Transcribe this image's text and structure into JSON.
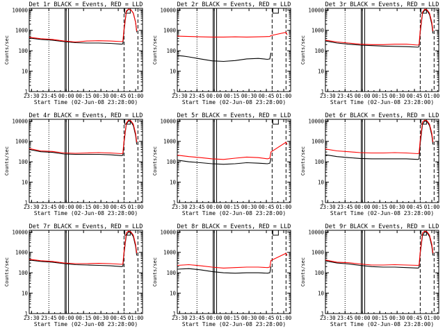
{
  "figure": {
    "xlabel": "Start Time (02-Jun-08 23:28:00)",
    "ylabel": "Counts/sec",
    "xticks": [
      "23:30",
      "23:45",
      "00:00",
      "00:15",
      "00:30",
      "00:45",
      "01:00"
    ],
    "yticks": [
      "1",
      "10",
      "100",
      "1000",
      "10000"
    ],
    "colors": {
      "events": "#000000",
      "lld": "#ff0000",
      "axes": "#000000",
      "background": "#ffffff"
    }
  },
  "chart_data": [
    {
      "type": "line",
      "title": "Det 1r BLACK = Events, RED = LLD",
      "xlabel": "Start Time (02-Jun-08 23:28:00)",
      "ylabel": "Counts/sec",
      "xlim_minutes": [
        0,
        98
      ],
      "ylim": [
        1,
        12000
      ],
      "yscale": "log",
      "dotted_line_min": 17,
      "solid_lines_min": [
        31,
        32,
        34
      ],
      "dashed_lines_min": [
        82,
        94
      ],
      "box_min": 85,
      "series": [
        {
          "name": "Events",
          "color": "#000000",
          "x": [
            0,
            10,
            20,
            30,
            40,
            50,
            60,
            70,
            80,
            81,
            82,
            84,
            86,
            88,
            90,
            92,
            93
          ],
          "y": [
            420,
            360,
            330,
            280,
            250,
            240,
            240,
            230,
            210,
            220,
            1000,
            8000,
            11000,
            10000,
            7000,
            2500,
            800
          ]
        },
        {
          "name": "LLD",
          "color": "#ff0000",
          "x": [
            0,
            10,
            20,
            30,
            40,
            50,
            60,
            70,
            80,
            81,
            82,
            84,
            86,
            88,
            90,
            92,
            93
          ],
          "y": [
            460,
            390,
            360,
            300,
            270,
            300,
            310,
            300,
            280,
            290,
            1200,
            9000,
            11000,
            10000,
            7000,
            2500,
            900
          ]
        }
      ]
    },
    {
      "type": "line",
      "title": "Det 2r BLACK = Events, RED = LLD",
      "xlabel": "Start Time (02-Jun-08 23:28:00)",
      "ylabel": "Counts/sec",
      "xlim_minutes": [
        0,
        98
      ],
      "ylim": [
        1,
        12000
      ],
      "yscale": "log",
      "dotted_line_min": 17,
      "solid_lines_min": [
        31,
        32,
        34
      ],
      "dashed_lines_min": [
        82,
        94
      ],
      "box_min": 85,
      "series": [
        {
          "name": "Events",
          "color": "#000000",
          "x": [
            0,
            5,
            10,
            20,
            30,
            40,
            50,
            60,
            70,
            78,
            80,
            81
          ],
          "y": [
            58,
            55,
            50,
            40,
            32,
            30,
            33,
            40,
            42,
            38,
            40,
            80
          ]
        },
        {
          "name": "LLD",
          "color": "#ff0000",
          "x": [
            0,
            10,
            20,
            30,
            40,
            50,
            60,
            70,
            80,
            81,
            94,
            95
          ],
          "y": [
            520,
            500,
            480,
            470,
            470,
            480,
            470,
            480,
            500,
            560,
            800,
            600
          ]
        }
      ]
    },
    {
      "type": "line",
      "title": "Det 3r BLACK = Events, RED = LLD",
      "xlabel": "Start Time (02-Jun-08 23:28:00)",
      "ylabel": "Counts/sec",
      "xlim_minutes": [
        0,
        98
      ],
      "ylim": [
        1,
        12000
      ],
      "yscale": "log",
      "dotted_line_min": 17,
      "solid_lines_min": [
        31,
        32,
        34
      ],
      "dashed_lines_min": [
        82,
        94
      ],
      "box_min": 85,
      "series": [
        {
          "name": "Events",
          "color": "#000000",
          "x": [
            0,
            10,
            20,
            30,
            40,
            50,
            60,
            70,
            80,
            81,
            82,
            84,
            86,
            88,
            90,
            92,
            93
          ],
          "y": [
            300,
            240,
            210,
            190,
            180,
            170,
            165,
            160,
            150,
            160,
            800,
            7000,
            10000,
            9000,
            6000,
            2000,
            700
          ]
        },
        {
          "name": "LLD",
          "color": "#ff0000",
          "x": [
            0,
            10,
            20,
            30,
            40,
            50,
            60,
            70,
            80,
            81,
            82,
            84,
            86,
            88,
            90,
            92,
            93
          ],
          "y": [
            330,
            270,
            240,
            210,
            200,
            200,
            210,
            210,
            190,
            200,
            1000,
            8000,
            11000,
            10000,
            7000,
            2500,
            900
          ]
        }
      ]
    },
    {
      "type": "line",
      "title": "Det 4r BLACK = Events, RED = LLD",
      "xlabel": "Start Time (02-Jun-08 23:28:00)",
      "ylabel": "Counts/sec",
      "xlim_minutes": [
        0,
        98
      ],
      "ylim": [
        1,
        12000
      ],
      "yscale": "log",
      "dotted_line_min": 17,
      "solid_lines_min": [
        31,
        32,
        34
      ],
      "dashed_lines_min": [
        82,
        94
      ],
      "box_min": 85,
      "series": [
        {
          "name": "Events",
          "color": "#000000",
          "x": [
            0,
            10,
            20,
            30,
            40,
            50,
            60,
            70,
            80,
            81,
            82,
            84,
            86,
            88,
            90,
            92,
            93
          ],
          "y": [
            400,
            310,
            290,
            240,
            230,
            230,
            230,
            220,
            200,
            210,
            900,
            7000,
            10000,
            9000,
            6000,
            2000,
            700
          ]
        },
        {
          "name": "LLD",
          "color": "#ff0000",
          "x": [
            0,
            10,
            20,
            30,
            40,
            50,
            60,
            70,
            80,
            81,
            82,
            84,
            86,
            88,
            90,
            92,
            93
          ],
          "y": [
            440,
            340,
            320,
            270,
            260,
            270,
            280,
            270,
            250,
            260,
            1100,
            8000,
            11000,
            10000,
            7000,
            2500,
            900
          ]
        }
      ]
    },
    {
      "type": "line",
      "title": "Det 5r BLACK = Events, RED = LLD",
      "xlabel": "Start Time (02-Jun-08 23:28:00)",
      "ylabel": "Counts/sec",
      "xlim_minutes": [
        0,
        98
      ],
      "ylim": [
        1,
        12000
      ],
      "yscale": "log",
      "dotted_line_min": 17,
      "solid_lines_min": [
        31,
        32,
        34
      ],
      "dashed_lines_min": [
        82,
        94
      ],
      "box_min": 85,
      "series": [
        {
          "name": "Events",
          "color": "#000000",
          "x": [
            0,
            10,
            20,
            30,
            40,
            50,
            60,
            70,
            78,
            80,
            81
          ],
          "y": [
            120,
            100,
            90,
            80,
            75,
            80,
            90,
            85,
            80,
            85,
            150
          ]
        },
        {
          "name": "LLD",
          "color": "#ff0000",
          "x": [
            0,
            10,
            20,
            30,
            40,
            50,
            60,
            70,
            78,
            80,
            81,
            94,
            95
          ],
          "y": [
            210,
            180,
            160,
            140,
            130,
            150,
            170,
            160,
            140,
            150,
            300,
            900,
            700
          ]
        }
      ]
    },
    {
      "type": "line",
      "title": "Det 6r BLACK = Events, RED = LLD",
      "xlabel": "Start Time (02-Jun-08 23:28:00)",
      "ylabel": "Counts/sec",
      "xlim_minutes": [
        0,
        98
      ],
      "ylim": [
        1,
        12000
      ],
      "yscale": "log",
      "dotted_line_min": 17,
      "solid_lines_min": [
        31,
        32,
        34
      ],
      "dashed_lines_min": [
        82,
        94
      ],
      "box_min": 85,
      "series": [
        {
          "name": "Events",
          "color": "#000000",
          "x": [
            0,
            10,
            20,
            30,
            40,
            50,
            60,
            70,
            80,
            81,
            82,
            84,
            86,
            88,
            90,
            92,
            93
          ],
          "y": [
            220,
            180,
            160,
            145,
            140,
            140,
            140,
            140,
            130,
            140,
            800,
            7000,
            10000,
            9000,
            6000,
            2000,
            700
          ]
        },
        {
          "name": "LLD",
          "color": "#ff0000",
          "x": [
            0,
            10,
            20,
            30,
            40,
            50,
            60,
            70,
            80,
            81,
            82,
            84,
            86,
            88,
            90,
            92,
            93
          ],
          "y": [
            420,
            340,
            310,
            280,
            270,
            270,
            280,
            270,
            250,
            260,
            1200,
            9000,
            11000,
            10000,
            7000,
            2500,
            900
          ]
        }
      ]
    },
    {
      "type": "line",
      "title": "Det 7r BLACK = Events, RED = LLD",
      "xlabel": "Start Time (02-Jun-08 23:28:00)",
      "ylabel": "Counts/sec",
      "xlim_minutes": [
        0,
        98
      ],
      "ylim": [
        1,
        12000
      ],
      "yscale": "log",
      "dotted_line_min": 17,
      "solid_lines_min": [
        31,
        32,
        34
      ],
      "dashed_lines_min": [
        82,
        94
      ],
      "box_min": 85,
      "series": [
        {
          "name": "Events",
          "color": "#000000",
          "x": [
            0,
            10,
            20,
            30,
            40,
            50,
            60,
            70,
            80,
            81,
            82,
            84,
            86,
            88,
            90,
            92,
            93
          ],
          "y": [
            420,
            360,
            330,
            280,
            250,
            240,
            230,
            220,
            200,
            210,
            900,
            7000,
            10000,
            9000,
            6000,
            2000,
            700
          ]
        },
        {
          "name": "LLD",
          "color": "#ff0000",
          "x": [
            0,
            10,
            20,
            30,
            40,
            50,
            60,
            70,
            80,
            81,
            82,
            84,
            86,
            88,
            90,
            92,
            93
          ],
          "y": [
            460,
            390,
            360,
            300,
            280,
            280,
            290,
            280,
            260,
            270,
            1100,
            9000,
            11000,
            10000,
            7000,
            2500,
            900
          ]
        }
      ]
    },
    {
      "type": "line",
      "title": "Det 8r BLACK = Events, RED = LLD",
      "xlabel": "Start Time (02-Jun-08 23:28:00)",
      "ylabel": "Counts/sec",
      "xlim_minutes": [
        0,
        98
      ],
      "ylim": [
        1,
        12000
      ],
      "yscale": "log",
      "dotted_line_min": 17,
      "solid_lines_min": [
        31,
        32,
        34
      ],
      "dashed_lines_min": [
        82,
        94
      ],
      "box_min": 85,
      "series": [
        {
          "name": "Events",
          "color": "#000000",
          "x": [
            0,
            10,
            20,
            30,
            40,
            50,
            60,
            70,
            78,
            80,
            81
          ],
          "y": [
            150,
            160,
            140,
            115,
            100,
            95,
            100,
            100,
            95,
            100,
            200
          ]
        },
        {
          "name": "LLD",
          "color": "#ff0000",
          "x": [
            0,
            10,
            20,
            30,
            40,
            50,
            60,
            70,
            78,
            80,
            81,
            94,
            95
          ],
          "y": [
            230,
            250,
            220,
            190,
            170,
            180,
            190,
            190,
            180,
            190,
            400,
            900,
            700
          ]
        }
      ]
    },
    {
      "type": "line",
      "title": "Det 9r BLACK = Events, RED = LLD",
      "xlabel": "Start Time (02-Jun-08 23:28:00)",
      "ylabel": "Counts/sec",
      "xlim_minutes": [
        0,
        98
      ],
      "ylim": [
        1,
        12000
      ],
      "yscale": "log",
      "dotted_line_min": 17,
      "solid_lines_min": [
        31,
        32,
        34
      ],
      "dashed_lines_min": [
        82,
        94
      ],
      "box_min": 85,
      "series": [
        {
          "name": "Events",
          "color": "#000000",
          "x": [
            0,
            10,
            20,
            30,
            40,
            50,
            60,
            70,
            80,
            81,
            82,
            84,
            86,
            88,
            90,
            92,
            93
          ],
          "y": [
            380,
            300,
            270,
            230,
            200,
            190,
            190,
            180,
            170,
            180,
            900,
            7000,
            10000,
            9000,
            6000,
            2000,
            700
          ]
        },
        {
          "name": "LLD",
          "color": "#ff0000",
          "x": [
            0,
            10,
            20,
            30,
            40,
            50,
            60,
            70,
            80,
            81,
            82,
            84,
            86,
            88,
            90,
            92,
            93
          ],
          "y": [
            420,
            330,
            310,
            270,
            240,
            240,
            250,
            240,
            230,
            240,
            1100,
            9000,
            11000,
            10000,
            7000,
            2500,
            900
          ]
        }
      ]
    }
  ]
}
